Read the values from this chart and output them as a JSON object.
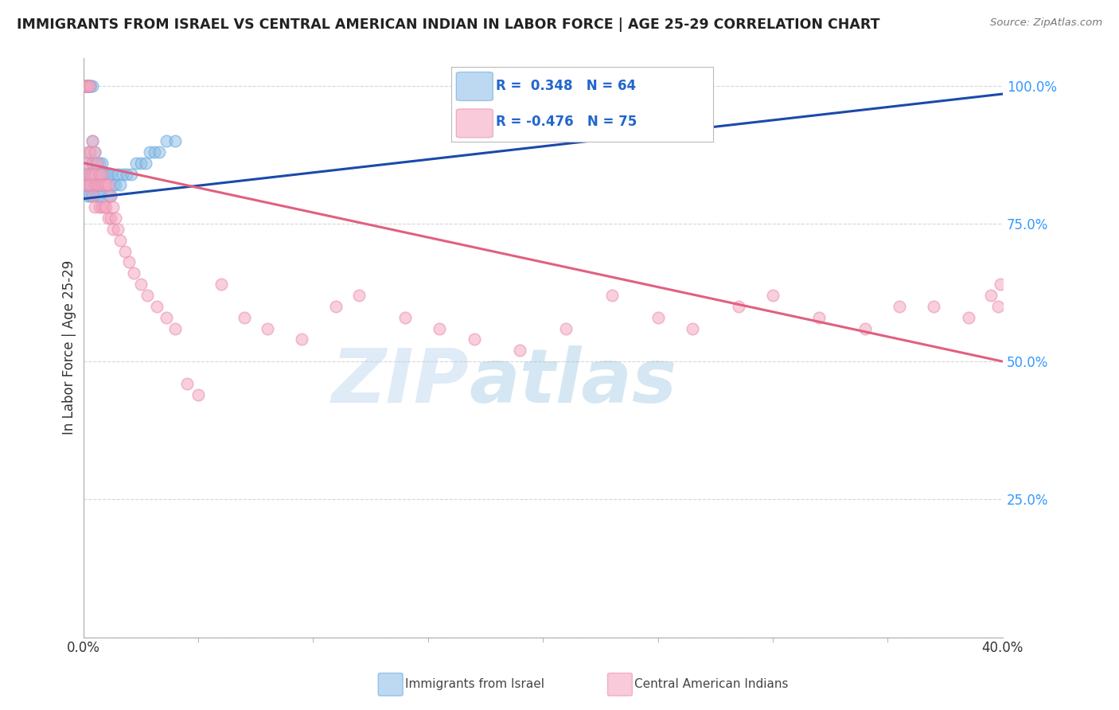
{
  "title": "IMMIGRANTS FROM ISRAEL VS CENTRAL AMERICAN INDIAN IN LABOR FORCE | AGE 25-29 CORRELATION CHART",
  "source": "Source: ZipAtlas.com",
  "ylabel": "In Labor Force | Age 25-29",
  "yticks": [
    0.0,
    0.25,
    0.5,
    0.75,
    1.0
  ],
  "ytick_labels": [
    "",
    "25.0%",
    "50.0%",
    "75.0%",
    "100.0%"
  ],
  "xlim": [
    0.0,
    0.4
  ],
  "ylim": [
    0.0,
    1.05
  ],
  "blue_R": 0.348,
  "blue_N": 64,
  "pink_R": -0.476,
  "pink_N": 75,
  "blue_color": "#92c0e8",
  "pink_color": "#f5a8c0",
  "blue_line_color": "#1a4aaa",
  "pink_line_color": "#e06080",
  "watermark_zip": "ZIP",
  "watermark_atlas": "atlas",
  "legend_label_blue": "Immigrants from Israel",
  "legend_label_pink": "Central American Indians",
  "blue_line_x": [
    0.0,
    0.4
  ],
  "blue_line_y": [
    0.795,
    0.985
  ],
  "pink_line_x": [
    0.0,
    0.4
  ],
  "pink_line_y": [
    0.86,
    0.5
  ],
  "blue_scatter_x": [
    0.001,
    0.001,
    0.001,
    0.001,
    0.002,
    0.002,
    0.002,
    0.002,
    0.002,
    0.002,
    0.002,
    0.002,
    0.003,
    0.003,
    0.003,
    0.003,
    0.003,
    0.003,
    0.003,
    0.004,
    0.004,
    0.004,
    0.004,
    0.004,
    0.004,
    0.005,
    0.005,
    0.005,
    0.005,
    0.005,
    0.006,
    0.006,
    0.006,
    0.006,
    0.007,
    0.007,
    0.007,
    0.007,
    0.008,
    0.008,
    0.008,
    0.009,
    0.009,
    0.01,
    0.01,
    0.011,
    0.011,
    0.012,
    0.012,
    0.013,
    0.014,
    0.015,
    0.016,
    0.017,
    0.019,
    0.021,
    0.023,
    0.025,
    0.027,
    0.029,
    0.031,
    0.033,
    0.036,
    0.04
  ],
  "blue_scatter_y": [
    1.0,
    1.0,
    1.0,
    0.82,
    1.0,
    1.0,
    1.0,
    1.0,
    0.86,
    0.84,
    0.82,
    0.8,
    1.0,
    1.0,
    1.0,
    0.88,
    0.84,
    0.82,
    0.8,
    1.0,
    0.9,
    0.86,
    0.84,
    0.82,
    0.8,
    0.88,
    0.86,
    0.84,
    0.82,
    0.8,
    0.86,
    0.84,
    0.82,
    0.8,
    0.86,
    0.84,
    0.82,
    0.8,
    0.86,
    0.84,
    0.82,
    0.84,
    0.82,
    0.84,
    0.82,
    0.84,
    0.8,
    0.84,
    0.8,
    0.82,
    0.82,
    0.84,
    0.82,
    0.84,
    0.84,
    0.84,
    0.86,
    0.86,
    0.86,
    0.88,
    0.88,
    0.88,
    0.9,
    0.9
  ],
  "pink_scatter_x": [
    0.001,
    0.001,
    0.001,
    0.001,
    0.002,
    0.002,
    0.002,
    0.002,
    0.003,
    0.003,
    0.003,
    0.003,
    0.004,
    0.004,
    0.004,
    0.004,
    0.005,
    0.005,
    0.005,
    0.005,
    0.006,
    0.006,
    0.007,
    0.007,
    0.007,
    0.008,
    0.008,
    0.008,
    0.009,
    0.009,
    0.01,
    0.01,
    0.011,
    0.011,
    0.012,
    0.012,
    0.013,
    0.013,
    0.014,
    0.015,
    0.016,
    0.018,
    0.02,
    0.022,
    0.025,
    0.028,
    0.032,
    0.036,
    0.04,
    0.045,
    0.05,
    0.06,
    0.07,
    0.08,
    0.095,
    0.11,
    0.12,
    0.14,
    0.155,
    0.17,
    0.19,
    0.21,
    0.23,
    0.25,
    0.265,
    0.285,
    0.3,
    0.32,
    0.34,
    0.355,
    0.37,
    0.385,
    0.395,
    0.398,
    0.399
  ],
  "pink_scatter_y": [
    1.0,
    1.0,
    0.86,
    0.82,
    1.0,
    0.88,
    0.84,
    0.82,
    1.0,
    0.88,
    0.84,
    0.82,
    0.9,
    0.86,
    0.84,
    0.8,
    0.88,
    0.84,
    0.82,
    0.78,
    0.86,
    0.82,
    0.84,
    0.82,
    0.78,
    0.84,
    0.82,
    0.78,
    0.82,
    0.78,
    0.82,
    0.78,
    0.82,
    0.76,
    0.8,
    0.76,
    0.78,
    0.74,
    0.76,
    0.74,
    0.72,
    0.7,
    0.68,
    0.66,
    0.64,
    0.62,
    0.6,
    0.58,
    0.56,
    0.46,
    0.44,
    0.64,
    0.58,
    0.56,
    0.54,
    0.6,
    0.62,
    0.58,
    0.56,
    0.54,
    0.52,
    0.56,
    0.62,
    0.58,
    0.56,
    0.6,
    0.62,
    0.58,
    0.56,
    0.6,
    0.6,
    0.58,
    0.62,
    0.6,
    0.64
  ]
}
